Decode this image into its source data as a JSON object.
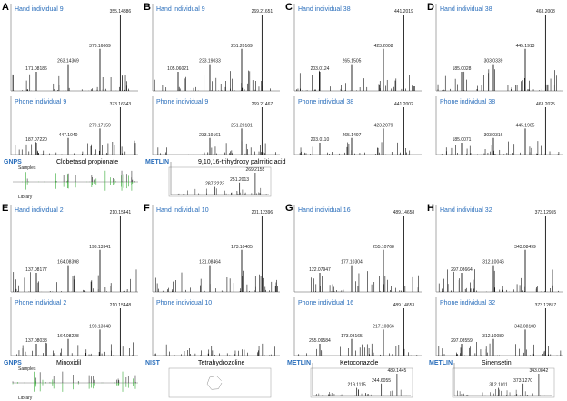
{
  "panels": [
    {
      "label": "A",
      "hand": {
        "title": "Hand individual 9",
        "peaks": [
          "355.14886",
          "373.16069",
          "263.14369",
          "171.08186"
        ]
      },
      "phone": {
        "title": "Phone individual 9",
        "peaks": [
          "373.16643",
          "279.17159",
          "447.1040",
          "187.07220"
        ]
      },
      "library": {
        "name": "GNPS",
        "compound": "Clobetasol propionate",
        "samples": "Samples",
        "reference": "Library"
      }
    },
    {
      "label": "B",
      "hand": {
        "title": "Hand individual 9",
        "peaks": [
          "269.21651",
          "251.20169",
          "233.19033",
          "105.06021"
        ]
      },
      "phone": {
        "title": "Phone individual 9",
        "peaks": [
          "269.21467",
          "251.20181",
          "233.19161"
        ]
      },
      "library": {
        "name": "METLIN",
        "compound": "9,10,16-trihydroxy palmitic acid",
        "peaks": [
          "269.2155",
          "251.2013",
          "287.2223"
        ]
      }
    },
    {
      "label": "C",
      "hand": {
        "title": "Hand individual 38",
        "peaks": [
          "441.2019",
          "423.2008",
          "265.1505",
          "203.0124"
        ]
      },
      "phone": {
        "title": "Phone individual 38",
        "peaks": [
          "441.2002",
          "423.2079",
          "265.1497",
          "203.0110"
        ]
      }
    },
    {
      "label": "D",
      "hand": {
        "title": "Hand individual 38",
        "peaks": [
          "463.2008",
          "445.1913",
          "303.0339",
          "185.0028"
        ]
      },
      "phone": {
        "title": "Phone individual 38",
        "peaks": [
          "463.2025",
          "445.1905",
          "303.0316",
          "185.0071"
        ]
      }
    },
    {
      "label": "E",
      "hand": {
        "title": "Hand individual 2",
        "peaks": [
          "210.15441",
          "193.13341",
          "164.08398",
          "137.08177"
        ]
      },
      "phone": {
        "title": "Phone individual 2",
        "peaks": [
          "210.15448",
          "193.13348",
          "164.08228",
          "137.08033"
        ]
      },
      "library": {
        "name": "GNPS",
        "compound": "Minoxidil",
        "samples": "Samples",
        "reference": "Library"
      }
    },
    {
      "label": "F",
      "hand": {
        "title": "Hand individual 10",
        "peaks": [
          "201.12396",
          "173.10405",
          "131.08464"
        ]
      },
      "phone": {
        "title": "Phone individual 10",
        "peaks": []
      },
      "library": {
        "name": "NIST",
        "compound": "Tetrahydrozoline"
      }
    },
    {
      "label": "G",
      "hand": {
        "title": "Hand individual 16",
        "peaks": [
          "489.14658",
          "255.10768",
          "177.10304",
          "122.07947"
        ]
      },
      "phone": {
        "title": "Phone individual 16",
        "peaks": [
          "489.14653",
          "217.10866",
          "173.08165",
          "255.09584"
        ]
      },
      "library": {
        "name": "METLIN",
        "compound": "Ketoconazole",
        "peaks": [
          "489.1445",
          "244.6055",
          "219.1115"
        ]
      }
    },
    {
      "label": "H",
      "hand": {
        "title": "Hand individual 32",
        "peaks": [
          "373.12955",
          "343.08499",
          "312.10046",
          "297.08664"
        ]
      },
      "phone": {
        "title": "Phone individual 32",
        "peaks": [
          "373.12817",
          "343.08108",
          "312.10089",
          "297.08559"
        ]
      },
      "library": {
        "name": "METLIN",
        "compound": "Sinensetin",
        "peaks": [
          "343.0842",
          "373.1270",
          "312.1011"
        ]
      }
    }
  ]
}
